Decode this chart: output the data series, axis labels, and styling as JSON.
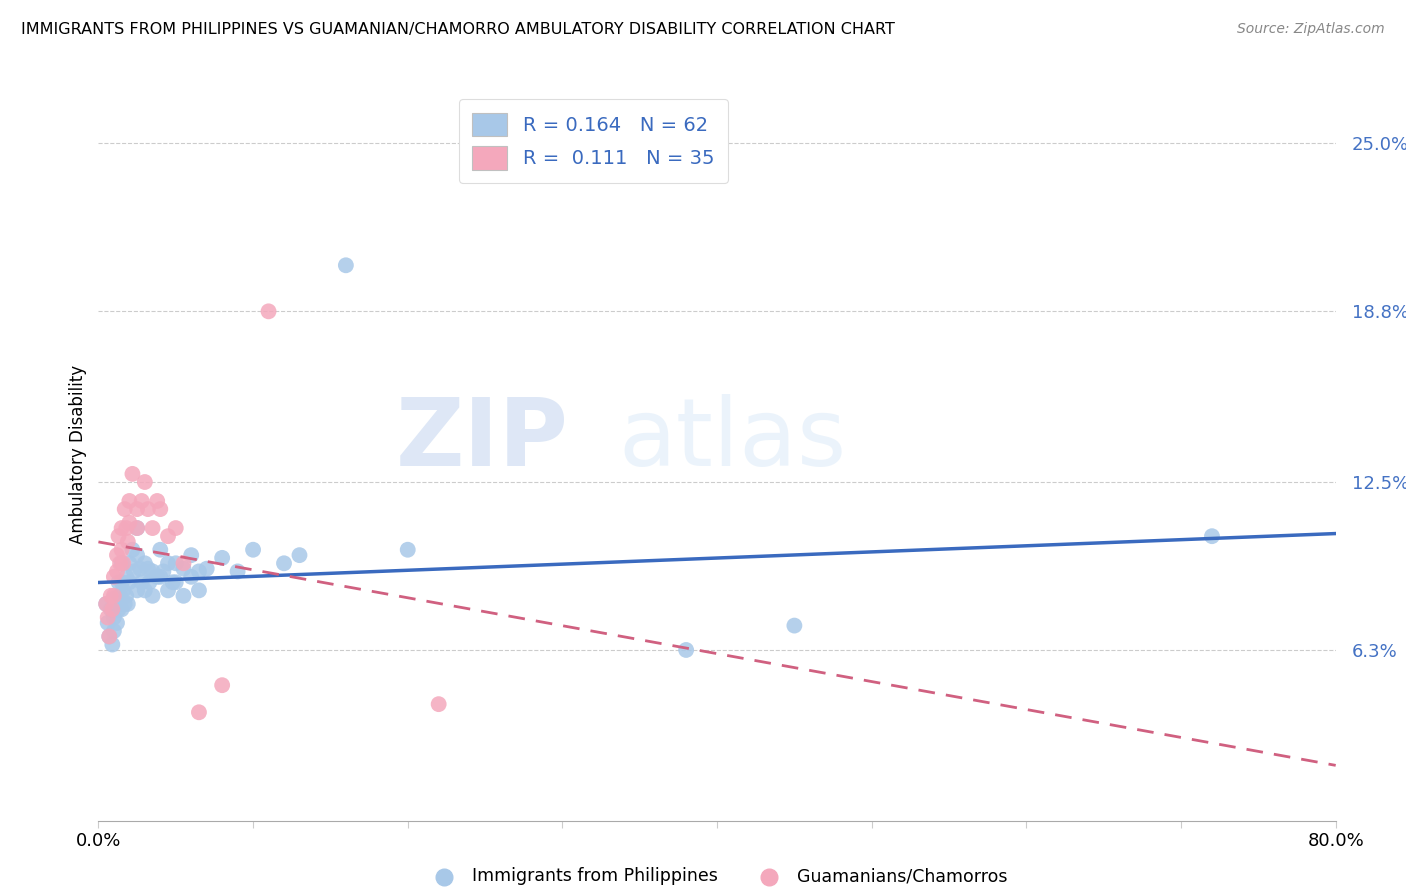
{
  "title": "IMMIGRANTS FROM PHILIPPINES VS GUAMANIAN/CHAMORRO AMBULATORY DISABILITY CORRELATION CHART",
  "source": "Source: ZipAtlas.com",
  "ylabel": "Ambulatory Disability",
  "yticks": [
    "6.3%",
    "12.5%",
    "18.8%",
    "25.0%"
  ],
  "ytick_vals": [
    0.063,
    0.125,
    0.188,
    0.25
  ],
  "xlim": [
    0.0,
    0.8
  ],
  "ylim": [
    0.0,
    0.27
  ],
  "legend_label1": "Immigrants from Philippines",
  "legend_label2": "Guamanians/Chamorros",
  "r1": "0.164",
  "n1": "62",
  "r2": "0.111",
  "n2": "35",
  "color_blue": "#a8c8e8",
  "color_pink": "#f4a8bc",
  "color_blue_line": "#3a6abf",
  "color_pink_line": "#d06080",
  "watermark_zip": "ZIP",
  "watermark_atlas": "atlas",
  "blue_x": [
    0.005,
    0.006,
    0.007,
    0.008,
    0.009,
    0.01,
    0.01,
    0.01,
    0.012,
    0.012,
    0.013,
    0.013,
    0.014,
    0.015,
    0.015,
    0.015,
    0.016,
    0.017,
    0.018,
    0.018,
    0.019,
    0.02,
    0.02,
    0.022,
    0.023,
    0.025,
    0.025,
    0.025,
    0.027,
    0.028,
    0.03,
    0.03,
    0.032,
    0.033,
    0.035,
    0.035,
    0.038,
    0.04,
    0.04,
    0.042,
    0.045,
    0.045,
    0.048,
    0.05,
    0.05,
    0.055,
    0.055,
    0.06,
    0.06,
    0.065,
    0.065,
    0.07,
    0.08,
    0.09,
    0.1,
    0.12,
    0.13,
    0.16,
    0.2,
    0.38,
    0.45,
    0.72
  ],
  "blue_y": [
    0.08,
    0.073,
    0.068,
    0.078,
    0.065,
    0.082,
    0.075,
    0.07,
    0.08,
    0.073,
    0.088,
    0.078,
    0.083,
    0.095,
    0.088,
    0.078,
    0.085,
    0.08,
    0.09,
    0.083,
    0.08,
    0.095,
    0.088,
    0.1,
    0.092,
    0.108,
    0.098,
    0.085,
    0.093,
    0.088,
    0.095,
    0.085,
    0.093,
    0.088,
    0.092,
    0.083,
    0.09,
    0.1,
    0.09,
    0.092,
    0.095,
    0.085,
    0.088,
    0.095,
    0.088,
    0.093,
    0.083,
    0.098,
    0.09,
    0.092,
    0.085,
    0.093,
    0.097,
    0.092,
    0.1,
    0.095,
    0.098,
    0.205,
    0.1,
    0.063,
    0.072,
    0.105
  ],
  "pink_x": [
    0.005,
    0.006,
    0.007,
    0.008,
    0.009,
    0.01,
    0.01,
    0.012,
    0.012,
    0.013,
    0.014,
    0.015,
    0.015,
    0.016,
    0.017,
    0.018,
    0.019,
    0.02,
    0.02,
    0.022,
    0.025,
    0.025,
    0.028,
    0.03,
    0.032,
    0.035,
    0.038,
    0.04,
    0.045,
    0.05,
    0.055,
    0.065,
    0.08,
    0.11,
    0.22
  ],
  "pink_y": [
    0.08,
    0.075,
    0.068,
    0.083,
    0.078,
    0.09,
    0.083,
    0.098,
    0.092,
    0.105,
    0.095,
    0.108,
    0.1,
    0.095,
    0.115,
    0.108,
    0.103,
    0.118,
    0.11,
    0.128,
    0.115,
    0.108,
    0.118,
    0.125,
    0.115,
    0.108,
    0.118,
    0.115,
    0.105,
    0.108,
    0.095,
    0.04,
    0.05,
    0.188,
    0.043
  ]
}
